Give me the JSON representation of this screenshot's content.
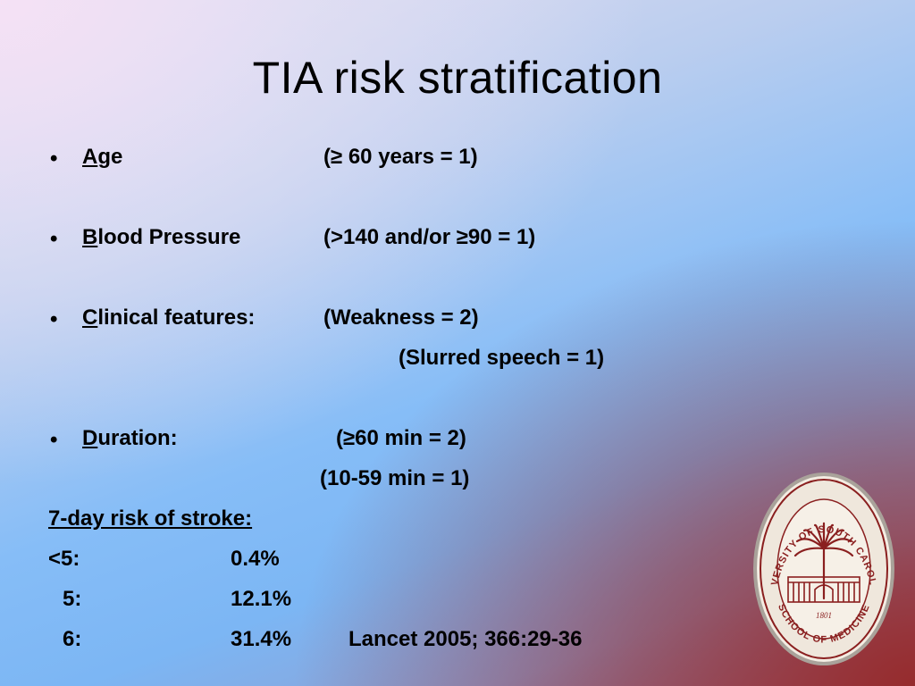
{
  "slide": {
    "title": "TIA risk stratification",
    "items": [
      {
        "initial": "A",
        "rest": "ge",
        "value": "(≥ 60 years = 1)"
      },
      {
        "initial": "B",
        "rest": "lood Pressure",
        "value": "(>140 and/or ≥90 = 1)"
      },
      {
        "initial": "C",
        "rest": "linical features:",
        "value": "(Weakness = 2)",
        "value2": "(Slurred speech = 1)"
      },
      {
        "initial": "D",
        "rest": "uration:",
        "value": "(≥60 min = 2)",
        "value2": "(10-59 min = 1)"
      }
    ],
    "bullet": "•",
    "risk": {
      "heading": "7-day risk of stroke:",
      "rows": [
        {
          "score": "<5:",
          "percent": "0.4%"
        },
        {
          "score": "5:",
          "percent": "12.1%"
        },
        {
          "score": "6:",
          "percent": "31.4%"
        }
      ],
      "citation": "Lancet 2005; 366:29-36"
    },
    "seal": {
      "top_text": "UNIVERSITY OF SOUTH CAROLINA",
      "bottom_text": "SCHOOL OF MEDICINE",
      "year": "1801"
    }
  }
}
